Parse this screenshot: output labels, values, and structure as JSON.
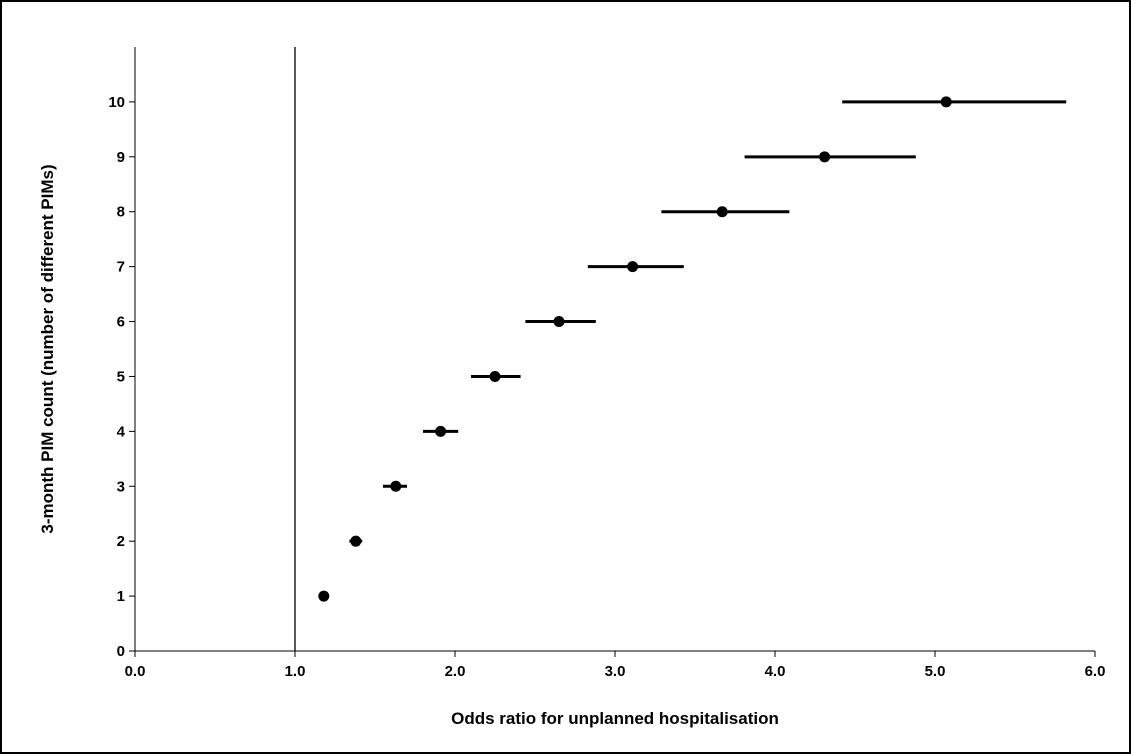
{
  "chart_data": {
    "type": "scatter",
    "title": "",
    "xlabel": "Odds ratio for unplanned hospitalisation",
    "ylabel": "3-month PIM count (number of different PIMs)",
    "xlim": [
      0.0,
      6.0
    ],
    "ylim": [
      0,
      11
    ],
    "xticks": [
      "0.0",
      "1.0",
      "2.0",
      "3.0",
      "4.0",
      "5.0",
      "6.0"
    ],
    "yticks": [
      "0",
      "1",
      "2",
      "3",
      "4",
      "5",
      "6",
      "7",
      "8",
      "9",
      "10"
    ],
    "reference_line_x": 1.0,
    "grid": false,
    "legend": "none",
    "marker_color": "#000000",
    "points": [
      {
        "count": 1,
        "or": 1.18,
        "ci_low": 1.16,
        "ci_high": 1.2
      },
      {
        "count": 2,
        "or": 1.38,
        "ci_low": 1.34,
        "ci_high": 1.42
      },
      {
        "count": 3,
        "or": 1.63,
        "ci_low": 1.55,
        "ci_high": 1.7
      },
      {
        "count": 4,
        "or": 1.91,
        "ci_low": 1.8,
        "ci_high": 2.02
      },
      {
        "count": 5,
        "or": 2.25,
        "ci_low": 2.1,
        "ci_high": 2.41
      },
      {
        "count": 6,
        "or": 2.65,
        "ci_low": 2.44,
        "ci_high": 2.88
      },
      {
        "count": 7,
        "or": 3.11,
        "ci_low": 2.83,
        "ci_high": 3.43
      },
      {
        "count": 8,
        "or": 3.67,
        "ci_low": 3.29,
        "ci_high": 4.09
      },
      {
        "count": 9,
        "or": 4.31,
        "ci_low": 3.81,
        "ci_high": 4.88
      },
      {
        "count": 10,
        "or": 5.07,
        "ci_low": 4.42,
        "ci_high": 5.82
      }
    ]
  }
}
